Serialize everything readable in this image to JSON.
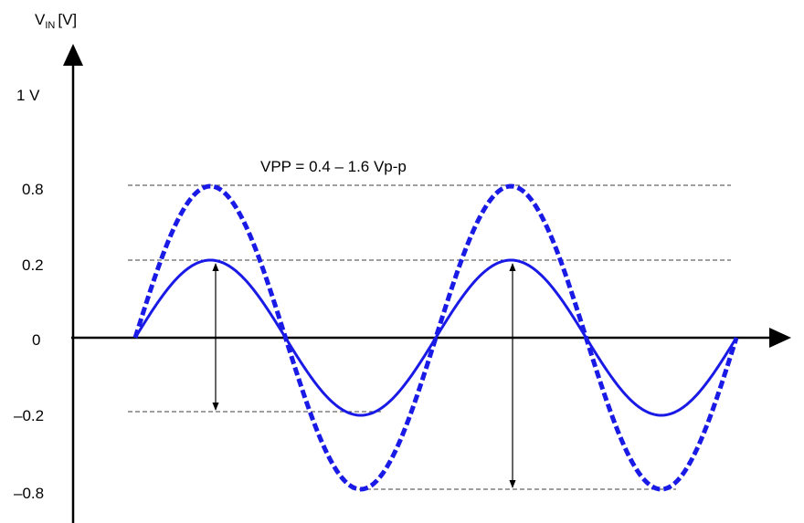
{
  "y_axis": {
    "label_main": "V",
    "label_sub": "IN",
    "label_unit": "[V]",
    "ticks": [
      "1 V",
      "0.8",
      "0.2",
      "0",
      "–0.2",
      "–0.8"
    ]
  },
  "annotation": "VPP = 0.4 – 1.6 Vp-p",
  "waveforms": [
    {
      "style": "solid",
      "amplitude": 0.2,
      "cycles": 2
    },
    {
      "style": "dashed",
      "amplitude": 0.8,
      "cycles": 2
    }
  ],
  "colors": {
    "wave": "#1a1ae6",
    "axis": "#000000",
    "guide": "#404040"
  }
}
